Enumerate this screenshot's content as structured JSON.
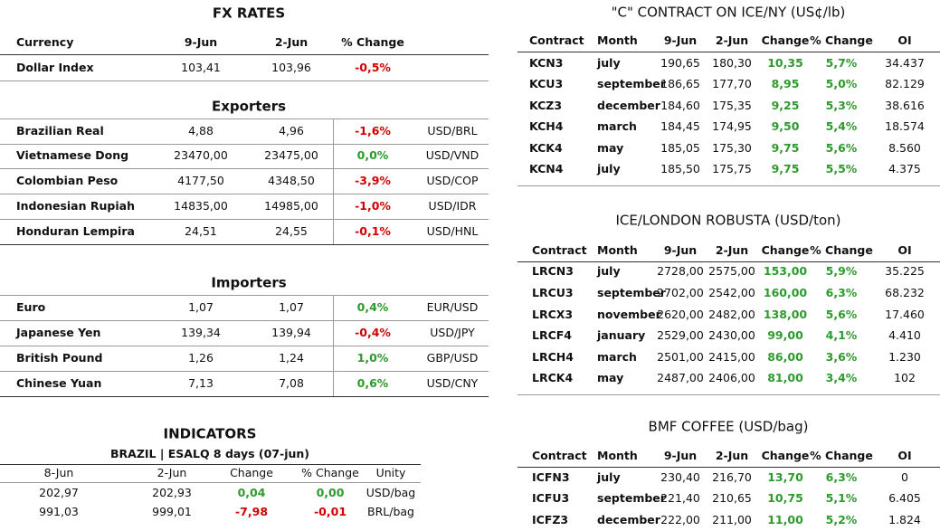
{
  "fx": {
    "title": "FX RATES",
    "header": [
      "Currency",
      "9-Jun",
      "2-Jun",
      "% Change"
    ],
    "rows": [
      [
        "Dollar Index",
        "103,41",
        "103,96",
        "-0,5%"
      ]
    ]
  },
  "exporters": {
    "title": "Exporters",
    "rows": [
      [
        "Brazilian Real",
        "4,88",
        "4,96",
        "-1,6%",
        "USD/BRL"
      ],
      [
        "Vietnamese Dong",
        "23470,00",
        "23475,00",
        "0,0%",
        "USD/VND"
      ],
      [
        "Colombian Peso",
        "4177,50",
        "4348,50",
        "-3,9%",
        "USD/COP"
      ],
      [
        "Indonesian Rupiah",
        "14835,00",
        "14985,00",
        "-1,0%",
        "USD/IDR"
      ],
      [
        "Honduran Lempira",
        "24,51",
        "24,55",
        "-0,1%",
        "USD/HNL"
      ]
    ]
  },
  "importers": {
    "title": "Importers",
    "rows": [
      [
        "Euro",
        "1,07",
        "1,07",
        "0,4%",
        "EUR/USD"
      ],
      [
        "Japanese Yen",
        "139,34",
        "139,94",
        "-0,4%",
        "USD/JPY"
      ],
      [
        "British Pound",
        "1,26",
        "1,24",
        "1,0%",
        "GBP/USD"
      ],
      [
        "Chinese Yuan",
        "7,13",
        "7,08",
        "0,6%",
        "USD/CNY"
      ]
    ]
  },
  "indicators": {
    "title": "INDICATORS",
    "subtitle": "BRAZIL | ESALQ 8 days (07-jun)",
    "header": [
      "8-Jun",
      "2-Jun",
      "Change",
      "% Change",
      "Unity"
    ],
    "rows": [
      [
        "202,97",
        "202,93",
        "0,04",
        "0,00",
        "USD/bag"
      ],
      [
        "991,03",
        "999,01",
        "-7,98",
        "-0,01",
        "BRL/bag"
      ]
    ]
  },
  "arabica": {
    "title": "\"C\" CONTRACT ON ICE/NY (US¢/lb)",
    "header": [
      "Contract",
      "Month",
      "9-Jun",
      "2-Jun",
      "Change",
      "% Change",
      "OI"
    ],
    "rows": [
      [
        "KCN3",
        "july",
        "190,65",
        "180,30",
        "10,35",
        "5,7%",
        "34.437"
      ],
      [
        "KCU3",
        "september",
        "186,65",
        "177,70",
        "8,95",
        "5,0%",
        "82.129"
      ],
      [
        "KCZ3",
        "december",
        "184,60",
        "175,35",
        "9,25",
        "5,3%",
        "38.616"
      ],
      [
        "KCH4",
        "march",
        "184,45",
        "174,95",
        "9,50",
        "5,4%",
        "18.574"
      ],
      [
        "KCK4",
        "may",
        "185,05",
        "175,30",
        "9,75",
        "5,6%",
        "8.560"
      ],
      [
        "KCN4",
        "july",
        "185,50",
        "175,75",
        "9,75",
        "5,5%",
        "4.375"
      ]
    ]
  },
  "robusta": {
    "title": "ICE/LONDON ROBUSTA (USD/ton)",
    "header": [
      "Contract",
      "Month",
      "9-Jun",
      "2-Jun",
      "Change",
      "% Change",
      "OI"
    ],
    "rows": [
      [
        "LRCN3",
        "july",
        "2728,00",
        "2575,00",
        "153,00",
        "5,9%",
        "35.225"
      ],
      [
        "LRCU3",
        "september",
        "2702,00",
        "2542,00",
        "160,00",
        "6,3%",
        "68.232"
      ],
      [
        "LRCX3",
        "november",
        "2620,00",
        "2482,00",
        "138,00",
        "5,6%",
        "17.460"
      ],
      [
        "LRCF4",
        "january",
        "2529,00",
        "2430,00",
        "99,00",
        "4,1%",
        "4.410"
      ],
      [
        "LRCH4",
        "march",
        "2501,00",
        "2415,00",
        "86,00",
        "3,6%",
        "1.230"
      ],
      [
        "LRCK4",
        "may",
        "2487,00",
        "2406,00",
        "81,00",
        "3,4%",
        "102"
      ]
    ]
  },
  "bmf": {
    "title": "BMF COFFEE (USD/bag)",
    "header": [
      "Contract",
      "Month",
      "9-Jun",
      "2-Jun",
      "Change",
      "% Change",
      "OI"
    ],
    "rows": [
      [
        "ICFN3",
        "july",
        "230,40",
        "216,70",
        "13,70",
        "6,3%",
        "0"
      ],
      [
        "ICFU3",
        "september",
        "221,40",
        "210,65",
        "10,75",
        "5,1%",
        "6.405"
      ],
      [
        "ICFZ3",
        "december",
        "222,00",
        "211,00",
        "11,00",
        "5,2%",
        "1.824"
      ]
    ]
  }
}
